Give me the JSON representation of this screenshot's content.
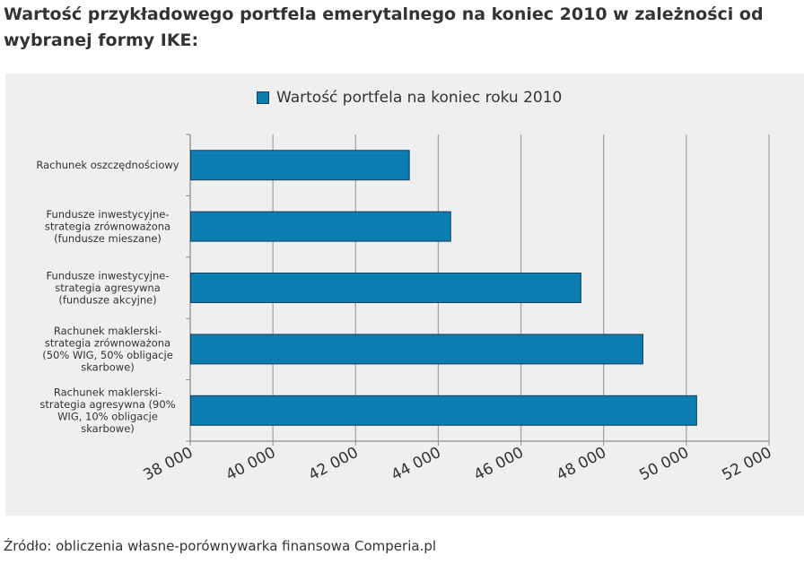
{
  "title_lines": [
    "Wartość przykładowego portfela emerytalnego na koniec 2010 w zależności od",
    "wybranej formy IKE:"
  ],
  "source": "Źródło: obliczenia własne-porównywarka finansowa Comperia.pl",
  "colors": {
    "bar": "#0b7db1",
    "bar_border": "#1a3f58",
    "grid": "#a6a6a6",
    "background": "#efefef"
  },
  "chart_data": {
    "type": "bar",
    "orientation": "horizontal",
    "title": "Wartość przykładowego portfela emerytalnego na koniec 2010 w zależności od wybranej formy IKE:",
    "legend_position": "top",
    "grid": true,
    "xlim": [
      38000,
      52000
    ],
    "xticks": [
      38000,
      40000,
      42000,
      44000,
      46000,
      48000,
      50000,
      52000
    ],
    "xtick_labels": [
      "38 000",
      "40 000",
      "42 000",
      "44 000",
      "46 000",
      "48 000",
      "50 000",
      "52 000"
    ],
    "categories": [
      [
        "Rachunek oszczędnościowy"
      ],
      [
        "Fundusze inwestycyjne-",
        "strategia zrównoważona",
        "(fundusze mieszane)"
      ],
      [
        "Fundusze inwestycyjne-",
        "strategia agresywna",
        "(fundusze akcyjne)"
      ],
      [
        "Rachunek maklerski-",
        "strategia zrównoważona",
        "(50% WIG, 50% obligacje",
        "skarbowe)"
      ],
      [
        "Rachunek maklerski-",
        "strategia agresywna (90%",
        "WIG, 10% obligacje",
        "skarbowe)"
      ]
    ],
    "series": [
      {
        "name": "Wartość portfela na koniec roku 2010",
        "values": [
          43300,
          44300,
          47450,
          48950,
          50250
        ]
      }
    ]
  }
}
